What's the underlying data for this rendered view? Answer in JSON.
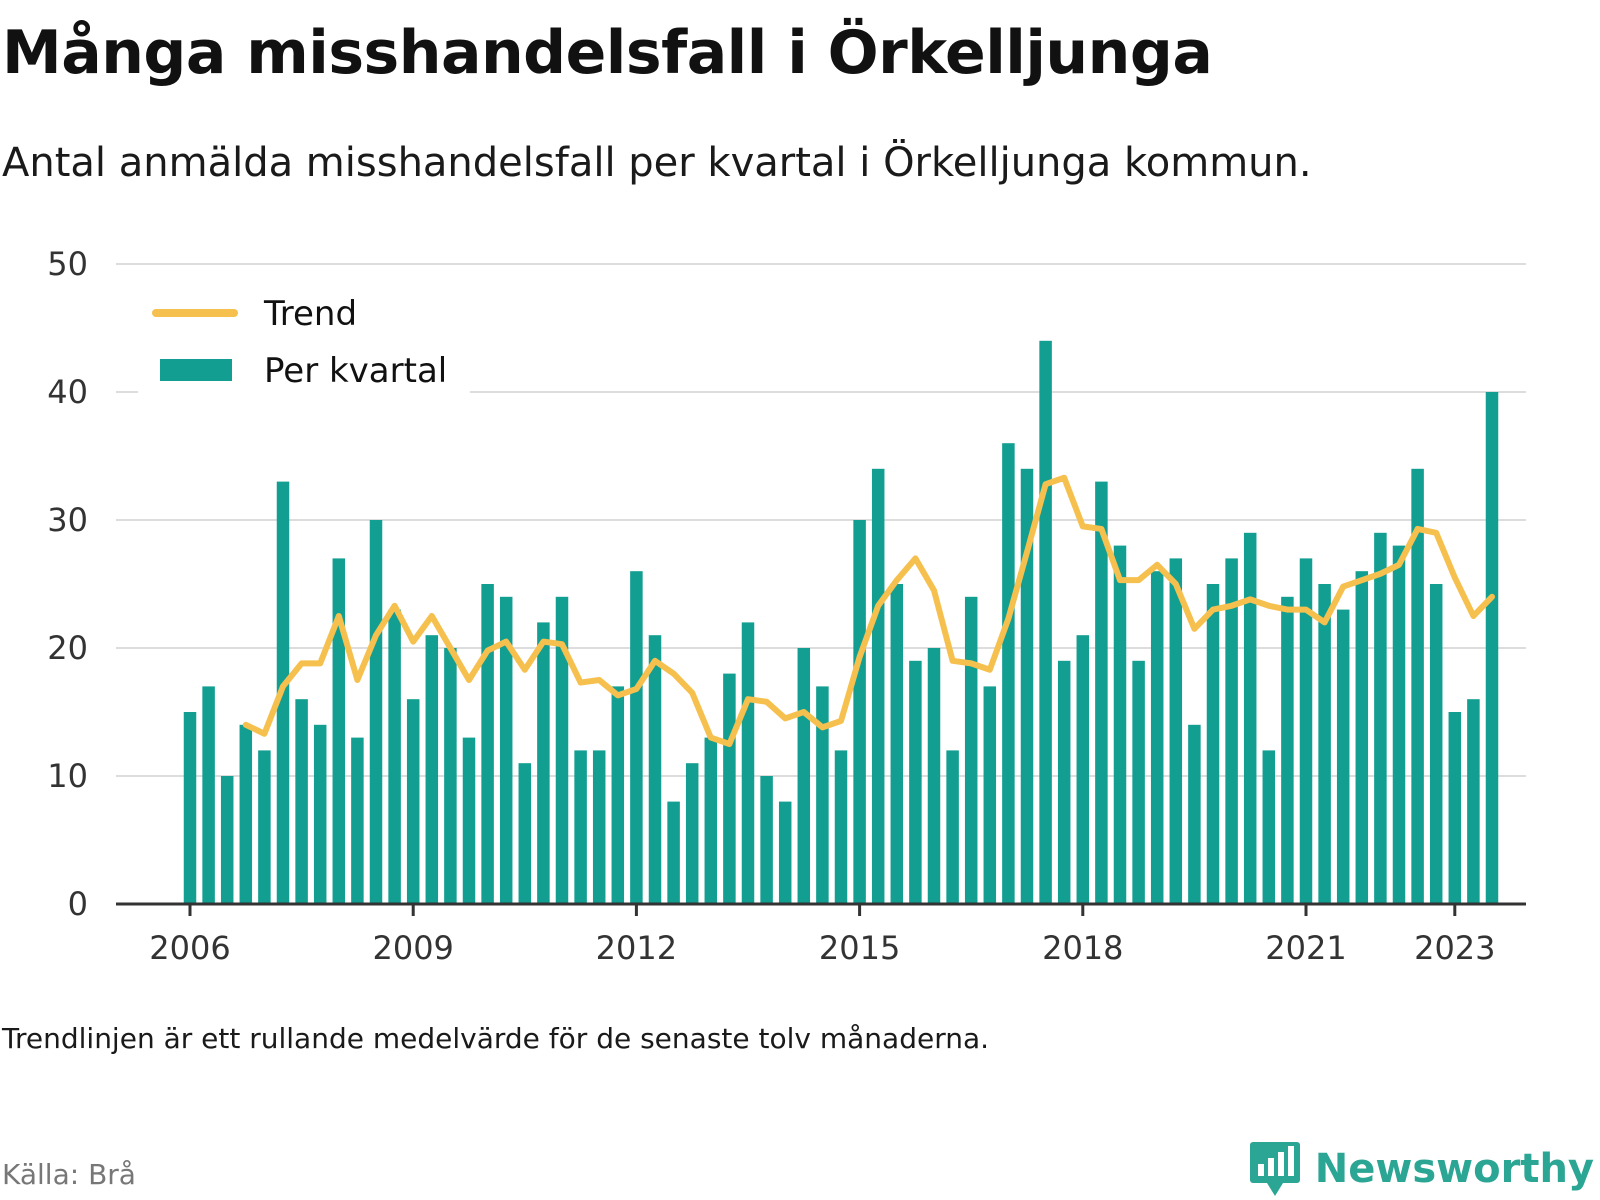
{
  "chart_data": {
    "type": "bar",
    "title": "Många misshandelsfall i Örkelljunga",
    "subtitle": "Antal anmälda misshandelsfall per kvartal i Örkelljunga kommun.",
    "xlabel": "",
    "ylabel": "",
    "ylim": [
      0,
      50
    ],
    "y_ticks": [
      0,
      10,
      20,
      30,
      40,
      50
    ],
    "x_tick_labels": [
      "2006",
      "2009",
      "2012",
      "2015",
      "2018",
      "2021",
      "2023"
    ],
    "x_tick_positions_quarter_index": [
      0,
      12,
      24,
      36,
      48,
      60,
      68
    ],
    "grid": true,
    "legend_position": "top-left",
    "series": [
      {
        "name": "Trend",
        "kind": "line",
        "color": "#f6c04e",
        "start_quarter_index": 3,
        "values": [
          14,
          13.3,
          17,
          18.8,
          18.8,
          22.5,
          17.5,
          21,
          23.3,
          20.5,
          22.5,
          20,
          17.5,
          19.8,
          20.5,
          18.3,
          20.5,
          20.3,
          17.3,
          17.5,
          16.3,
          16.8,
          19,
          18,
          16.5,
          13,
          12.5,
          16,
          15.8,
          14.5,
          15,
          13.8,
          14.3,
          19.3,
          23.3,
          25.3,
          27,
          24.5,
          19,
          18.8,
          18.3,
          22.3,
          27.5,
          32.8,
          33.3,
          29.5,
          29.3,
          25.3,
          25.3,
          26.5,
          25,
          21.5,
          23,
          23.3,
          23.8,
          23.3,
          23,
          23,
          22,
          24.8,
          25.3,
          25.8,
          26.5,
          29.3,
          29,
          25.5,
          22.5,
          24
        ]
      },
      {
        "name": "Per kvartal",
        "kind": "bar",
        "color": "#129e91",
        "start_quarter_index": 0,
        "values": [
          15,
          17,
          10,
          14,
          12,
          33,
          16,
          14,
          27,
          13,
          30,
          23,
          16,
          21,
          20,
          13,
          25,
          24,
          11,
          22,
          24,
          12,
          12,
          17,
          26,
          21,
          8,
          11,
          13,
          18,
          22,
          10,
          8,
          20,
          17,
          12,
          30,
          34,
          25,
          19,
          20,
          12,
          24,
          17,
          36,
          34,
          44,
          19,
          21,
          33,
          28,
          19,
          26,
          27,
          14,
          25,
          27,
          29,
          12,
          24,
          27,
          25,
          23,
          26,
          29,
          28,
          34,
          25,
          15,
          16,
          40
        ]
      }
    ]
  },
  "note": "Trendlinjen är ett rullande medelvärde för de senaste tolv månaderna.",
  "source": "Källa: Brå",
  "brand": {
    "name": "Newsworthy",
    "icon": "newsworthy-logo-icon",
    "color": "#2ba594"
  },
  "colors": {
    "grid": "#dddddd",
    "axis": "#333333"
  }
}
